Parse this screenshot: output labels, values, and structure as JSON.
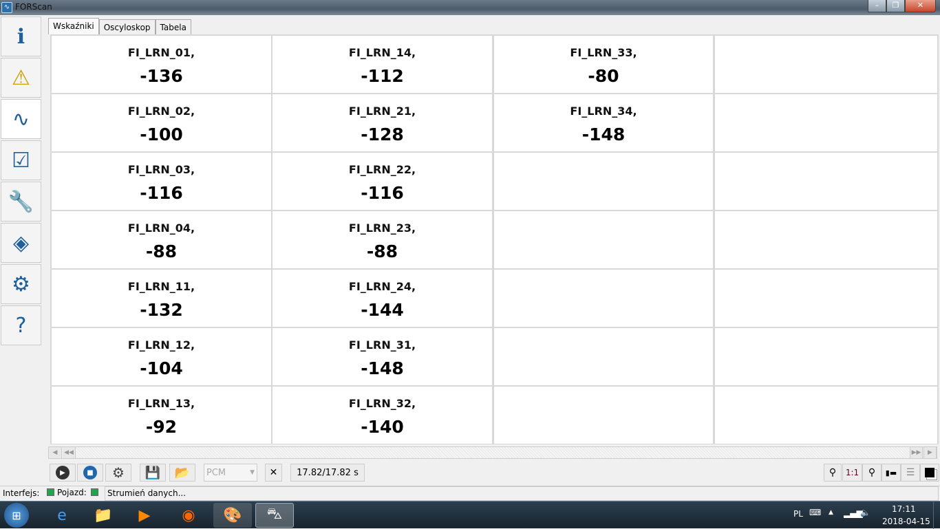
{
  "window": {
    "title": "FORScan",
    "app_icon": "waveform-icon"
  },
  "sidebar": {
    "items": [
      {
        "name": "info",
        "icon": "car-info-icon",
        "glyph": "ℹ"
      },
      {
        "name": "dtc",
        "icon": "dtc-warning-icon",
        "glyph": "⚠"
      },
      {
        "name": "oscilloscope",
        "icon": "oscilloscope-icon",
        "glyph": "∿"
      },
      {
        "name": "tests",
        "icon": "checklist-icon",
        "glyph": "☑"
      },
      {
        "name": "service",
        "icon": "wrench-icon",
        "glyph": "🔧"
      },
      {
        "name": "programming",
        "icon": "chip-icon",
        "glyph": "◈"
      },
      {
        "name": "settings",
        "icon": "gear-icon",
        "glyph": "⚙"
      },
      {
        "name": "help",
        "icon": "help-steering-icon",
        "glyph": "?"
      }
    ],
    "active": 2
  },
  "tabs": [
    {
      "label": "Wskaźniki",
      "active": true
    },
    {
      "label": "Oscyloskop",
      "active": false
    },
    {
      "label": "Tabela",
      "active": false
    }
  ],
  "gauges": [
    [
      {
        "name": "FI_LRN_01,",
        "value": "-136"
      },
      {
        "name": "FI_LRN_14,",
        "value": "-112"
      },
      {
        "name": "FI_LRN_33,",
        "value": "-80"
      },
      {
        "name": "",
        "value": ""
      }
    ],
    [
      {
        "name": "FI_LRN_02,",
        "value": "-100"
      },
      {
        "name": "FI_LRN_21,",
        "value": "-128"
      },
      {
        "name": "FI_LRN_34,",
        "value": "-148"
      },
      {
        "name": "",
        "value": ""
      }
    ],
    [
      {
        "name": "FI_LRN_03,",
        "value": "-116"
      },
      {
        "name": "FI_LRN_22,",
        "value": "-116"
      },
      {
        "name": "",
        "value": ""
      },
      {
        "name": "",
        "value": ""
      }
    ],
    [
      {
        "name": "FI_LRN_04,",
        "value": "-88"
      },
      {
        "name": "FI_LRN_23,",
        "value": "-88"
      },
      {
        "name": "",
        "value": ""
      },
      {
        "name": "",
        "value": ""
      }
    ],
    [
      {
        "name": "FI_LRN_11,",
        "value": "-132"
      },
      {
        "name": "FI_LRN_24,",
        "value": "-144"
      },
      {
        "name": "",
        "value": ""
      },
      {
        "name": "",
        "value": ""
      }
    ],
    [
      {
        "name": "FI_LRN_12,",
        "value": "-104"
      },
      {
        "name": "FI_LRN_31,",
        "value": "-148"
      },
      {
        "name": "",
        "value": ""
      },
      {
        "name": "",
        "value": ""
      }
    ],
    [
      {
        "name": "FI_LRN_13,",
        "value": "-92"
      },
      {
        "name": "FI_LRN_32,",
        "value": "-140"
      },
      {
        "name": "",
        "value": ""
      },
      {
        "name": "",
        "value": ""
      }
    ]
  ],
  "toolbar": {
    "module_select": "PCM",
    "time": "17.82/17.82 s",
    "zoom_reset": "1:1"
  },
  "status": {
    "interface_label": "Interfejs:",
    "vehicle_label": "Pojazd:",
    "message": "Strumień danych...",
    "led_color": "#1fa64a"
  },
  "taskbar": {
    "language": "PL",
    "time": "17:11",
    "date": "2018-04-15"
  }
}
